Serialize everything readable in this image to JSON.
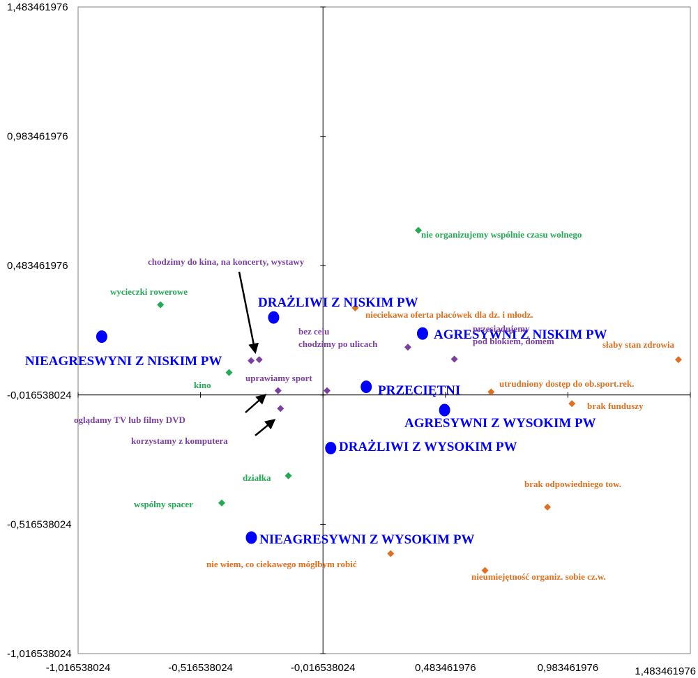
{
  "chart_data": {
    "type": "scatter",
    "title": "",
    "xlabel": "",
    "ylabel": "",
    "xlim": [
      -1.016538024,
      1.483461976
    ],
    "ylim": [
      -1.016538024,
      1.483461976
    ],
    "x_ticks": [
      "-1,016538024",
      "-0,516538024",
      "-0,016538024",
      "0,483461976",
      "0,983461976",
      "1,483461976"
    ],
    "y_ticks": [
      "1,483461976",
      "0,983461976",
      "0,483461976",
      "-0,016538024",
      "-0,516538024",
      "-1,016538024"
    ],
    "x_tick_values": [
      -1.016538024,
      -0.516538024,
      -0.016538024,
      0.483461976,
      0.983461976,
      1.483461976
    ],
    "y_tick_values": [
      1.483461976,
      0.983461976,
      0.483461976,
      -0.016538024,
      -0.516538024,
      -1.016538024
    ],
    "grid": false,
    "colors": {
      "groups": "#0000ff",
      "green": "#22aa55",
      "purple": "#7a3fa0",
      "orange": "#e07020",
      "axis": "#000000",
      "frame": "#808080"
    },
    "series": [
      {
        "marker": "circle",
        "color_key": "groups",
        "points": [
          {
            "x": -0.218,
            "y": 0.283,
            "label": "DRAŻLIWI Z NISKIM PW"
          },
          {
            "x": -0.92,
            "y": 0.209,
            "label": "NIEAGRESWYNI Z NISKIM PW"
          },
          {
            "x": 0.39,
            "y": 0.221,
            "label": "AGRESYWNI Z NISKIM PW"
          },
          {
            "x": 0.16,
            "y": 0.015,
            "label": "PRZECIĘTNI"
          },
          {
            "x": 0.48,
            "y": -0.075,
            "label": "AGRESYWNI Z WYSOKIM PW"
          },
          {
            "x": 0.015,
            "y": -0.222,
            "label": "DRAŻLIWI Z WYSOKIM PW"
          },
          {
            "x": -0.309,
            "y": -0.568,
            "label": "NIEAGRESYWNI Z WYSOKIM PW"
          }
        ]
      },
      {
        "marker": "diamond",
        "color_key": "green",
        "points": [
          {
            "x": 0.373,
            "y": 0.62,
            "label": "nie organizujemy wspólnie czasu wolnego"
          },
          {
            "x": -0.68,
            "y": 0.332,
            "label": "wycieczki rowerowe"
          },
          {
            "x": -0.4,
            "y": 0.07,
            "label": "kino"
          },
          {
            "x": -0.158,
            "y": -0.329,
            "label": "działka"
          },
          {
            "x": -0.43,
            "y": -0.434,
            "label": "wspólny spacer"
          }
        ]
      },
      {
        "marker": "diamond",
        "color_key": "purple",
        "points": [
          {
            "x": -0.31,
            "y": 0.116,
            "label": ""
          },
          {
            "x": -0.277,
            "y": 0.12,
            "label": "chodzimy do kina, na koncerty, wystawy"
          },
          {
            "x": 0.33,
            "y": 0.168,
            "label": "bez celu chodzimy po ulicach"
          },
          {
            "x": 0.52,
            "y": 0.122,
            "label": "przesiadujemy pod blokiem, domem"
          },
          {
            "x": -0.2,
            "y": 0.0,
            "label": "uprawiamy sport"
          },
          {
            "x": -0.19,
            "y": -0.069,
            "label": "korzystamy z komputera"
          },
          {
            "x": 0.0,
            "y": 0.0,
            "label": "oglądamy TV lub filmy DVD"
          }
        ]
      },
      {
        "marker": "diamond",
        "color_key": "orange",
        "points": [
          {
            "x": 0.115,
            "y": 0.32,
            "label": "nieciekawa oferta placówek dla dz. i młodz."
          },
          {
            "x": 1.435,
            "y": 0.12,
            "label": "słaby stan zdrowia"
          },
          {
            "x": 0.67,
            "y": -0.005,
            "label": "utrudniony dostęp do ob.sport.rek."
          },
          {
            "x": 1.0,
            "y": -0.05,
            "label": "brak funduszy"
          },
          {
            "x": 0.9,
            "y": -0.45,
            "label": "brak odpowiedniego tow."
          },
          {
            "x": 0.26,
            "y": -0.63,
            "label": "nie wiem, co ciekawego mógłbym robić"
          },
          {
            "x": 0.645,
            "y": -0.695,
            "label": "nieumiejętność organiz. sobie cz.w."
          }
        ]
      }
    ]
  }
}
